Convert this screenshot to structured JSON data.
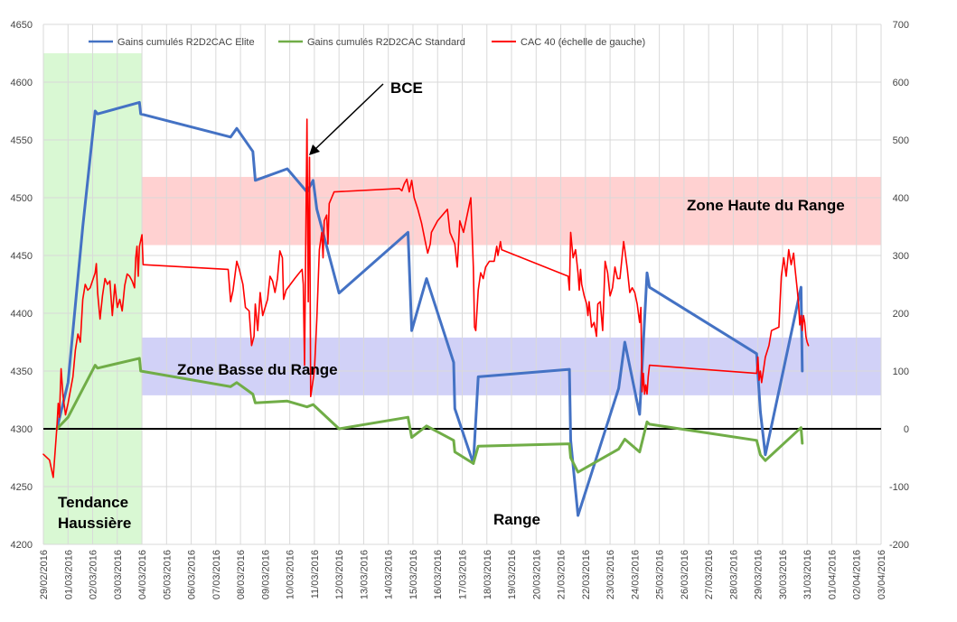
{
  "chart_data": {
    "type": "line",
    "x_range": [
      "29/02/2016",
      "03/04/2016"
    ],
    "x_tick_labels": [
      "29/02/2016",
      "01/03/2016",
      "02/03/2016",
      "03/03/2016",
      "04/03/2016",
      "05/03/2016",
      "06/03/2016",
      "07/03/2016",
      "08/03/2016",
      "09/03/2016",
      "10/03/2016",
      "11/03/2016",
      "12/03/2016",
      "13/03/2016",
      "14/03/2016",
      "15/03/2016",
      "16/03/2016",
      "17/03/2016",
      "18/03/2016",
      "19/03/2016",
      "20/03/2016",
      "21/03/2016",
      "22/03/2016",
      "23/03/2016",
      "24/03/2016",
      "25/03/2016",
      "26/03/2016",
      "27/03/2016",
      "28/03/2016",
      "29/03/2016",
      "30/03/2016",
      "31/03/2016",
      "01/04/2016",
      "02/04/2016",
      "03/04/2016"
    ],
    "y_left": {
      "min": 4200,
      "max": 4650,
      "ticks": [
        "4200",
        "4250",
        "4300",
        "4350",
        "4400",
        "4450",
        "4500",
        "4550",
        "4600",
        "4650"
      ]
    },
    "y_right": {
      "min": -200,
      "max": 700,
      "ticks": [
        "-200",
        "-100",
        "0",
        "100",
        "200",
        "300",
        "400",
        "500",
        "600",
        "700"
      ]
    },
    "grid": true,
    "legend_position": "top",
    "series": [
      {
        "name": "Gains cumulés R2D2CAC Elite",
        "axis": "right",
        "color": "#4472c4",
        "points": [
          [
            0.55,
            0
          ],
          [
            1.0,
            80
          ],
          [
            1.6,
            350
          ],
          [
            2.1,
            550
          ],
          [
            2.2,
            545
          ],
          [
            3.9,
            565
          ],
          [
            3.95,
            545
          ],
          [
            7.6,
            505
          ],
          [
            7.85,
            520
          ],
          [
            8.5,
            480
          ],
          [
            8.6,
            430
          ],
          [
            9.9,
            450
          ],
          [
            10.7,
            410
          ],
          [
            10.95,
            430
          ],
          [
            11.1,
            380
          ],
          [
            12.0,
            235
          ],
          [
            14.8,
            340
          ],
          [
            14.95,
            170
          ],
          [
            15.55,
            260
          ],
          [
            16.65,
            115
          ],
          [
            16.7,
            35
          ],
          [
            17.45,
            -60
          ],
          [
            17.65,
            90
          ],
          [
            21.35,
            103
          ],
          [
            21.4,
            -20
          ],
          [
            21.7,
            -150
          ],
          [
            23.35,
            70
          ],
          [
            23.6,
            150
          ],
          [
            24.2,
            25
          ],
          [
            24.5,
            270
          ],
          [
            24.6,
            245
          ],
          [
            28.95,
            130
          ],
          [
            29.1,
            30
          ],
          [
            29.3,
            -45
          ],
          [
            30.75,
            245
          ],
          [
            30.8,
            100
          ]
        ]
      },
      {
        "name": "Gains cumulés R2D2CAC Standard",
        "axis": "right",
        "color": "#70ad47",
        "points": [
          [
            0.55,
            0
          ],
          [
            1.0,
            20
          ],
          [
            2.1,
            110
          ],
          [
            2.2,
            105
          ],
          [
            3.9,
            122
          ],
          [
            3.95,
            100
          ],
          [
            7.6,
            73
          ],
          [
            7.85,
            80
          ],
          [
            8.5,
            60
          ],
          [
            8.6,
            45
          ],
          [
            9.9,
            48
          ],
          [
            10.7,
            38
          ],
          [
            10.95,
            42
          ],
          [
            12.0,
            0
          ],
          [
            14.8,
            20
          ],
          [
            14.95,
            -15
          ],
          [
            15.55,
            5
          ],
          [
            16.65,
            -20
          ],
          [
            16.7,
            -40
          ],
          [
            17.45,
            -60
          ],
          [
            17.65,
            -30
          ],
          [
            21.35,
            -26
          ],
          [
            21.4,
            -50
          ],
          [
            21.7,
            -75
          ],
          [
            23.35,
            -35
          ],
          [
            23.6,
            -18
          ],
          [
            24.2,
            -40
          ],
          [
            24.5,
            12
          ],
          [
            24.6,
            8
          ],
          [
            28.95,
            -20
          ],
          [
            29.1,
            -45
          ],
          [
            29.3,
            -55
          ],
          [
            30.75,
            2
          ],
          [
            30.8,
            -25
          ]
        ]
      },
      {
        "name": "CAC 40 (échelle de gauche)",
        "axis": "left",
        "color": "#ff0000",
        "points": [
          [
            0.0,
            4278
          ],
          [
            0.25,
            4273
          ],
          [
            0.4,
            4258
          ],
          [
            0.55,
            4302
          ],
          [
            0.6,
            4322
          ],
          [
            0.65,
            4310
          ],
          [
            0.72,
            4352
          ],
          [
            0.8,
            4328
          ],
          [
            0.9,
            4312
          ],
          [
            1.0,
            4322
          ],
          [
            1.2,
            4345
          ],
          [
            1.3,
            4368
          ],
          [
            1.4,
            4382
          ],
          [
            1.5,
            4375
          ],
          [
            1.6,
            4412
          ],
          [
            1.7,
            4425
          ],
          [
            1.8,
            4420
          ],
          [
            1.9,
            4422
          ],
          [
            2.1,
            4435
          ],
          [
            2.15,
            4443
          ],
          [
            2.2,
            4418
          ],
          [
            2.3,
            4395
          ],
          [
            2.4,
            4415
          ],
          [
            2.5,
            4430
          ],
          [
            2.6,
            4425
          ],
          [
            2.7,
            4428
          ],
          [
            2.8,
            4398
          ],
          [
            2.9,
            4425
          ],
          [
            3.0,
            4405
          ],
          [
            3.1,
            4412
          ],
          [
            3.2,
            4402
          ],
          [
            3.3,
            4424
          ],
          [
            3.4,
            4434
          ],
          [
            3.5,
            4432
          ],
          [
            3.6,
            4428
          ],
          [
            3.7,
            4422
          ],
          [
            3.75,
            4448
          ],
          [
            3.8,
            4458
          ],
          [
            3.85,
            4432
          ],
          [
            3.9,
            4458
          ],
          [
            4.0,
            4468
          ],
          [
            4.05,
            4442
          ],
          [
            7.5,
            4438
          ],
          [
            7.6,
            4410
          ],
          [
            7.7,
            4420
          ],
          [
            7.85,
            4445
          ],
          [
            7.95,
            4438
          ],
          [
            8.1,
            4425
          ],
          [
            8.2,
            4405
          ],
          [
            8.35,
            4402
          ],
          [
            8.45,
            4372
          ],
          [
            8.55,
            4380
          ],
          [
            8.6,
            4408
          ],
          [
            8.7,
            4385
          ],
          [
            8.8,
            4418
          ],
          [
            8.9,
            4398
          ],
          [
            9.1,
            4412
          ],
          [
            9.2,
            4432
          ],
          [
            9.3,
            4428
          ],
          [
            9.4,
            4418
          ],
          [
            9.5,
            4430
          ],
          [
            9.6,
            4454
          ],
          [
            9.7,
            4448
          ],
          [
            9.75,
            4412
          ],
          [
            9.85,
            4420
          ],
          [
            10.2,
            4430
          ],
          [
            10.5,
            4438
          ],
          [
            10.55,
            4425
          ],
          [
            10.6,
            4355
          ],
          [
            10.7,
            4568
          ],
          [
            10.75,
            4410
          ],
          [
            10.8,
            4535
          ],
          [
            10.85,
            4328
          ],
          [
            11.0,
            4350
          ],
          [
            11.1,
            4395
          ],
          [
            11.2,
            4455
          ],
          [
            11.3,
            4470
          ],
          [
            11.35,
            4448
          ],
          [
            11.4,
            4480
          ],
          [
            11.5,
            4485
          ],
          [
            11.55,
            4460
          ],
          [
            11.6,
            4495
          ],
          [
            11.7,
            4500
          ],
          [
            11.8,
            4505
          ],
          [
            14.45,
            4508
          ],
          [
            14.55,
            4506
          ],
          [
            14.65,
            4512
          ],
          [
            14.75,
            4516
          ],
          [
            14.85,
            4505
          ],
          [
            14.95,
            4515
          ],
          [
            15.05,
            4500
          ],
          [
            15.2,
            4490
          ],
          [
            15.35,
            4478
          ],
          [
            15.5,
            4462
          ],
          [
            15.6,
            4452
          ],
          [
            15.7,
            4460
          ],
          [
            15.75,
            4470
          ],
          [
            16.0,
            4480
          ],
          [
            16.4,
            4490
          ],
          [
            16.5,
            4470
          ],
          [
            16.6,
            4465
          ],
          [
            16.7,
            4460
          ],
          [
            16.8,
            4440
          ],
          [
            16.9,
            4480
          ],
          [
            17.05,
            4470
          ],
          [
            17.25,
            4490
          ],
          [
            17.35,
            4500
          ],
          [
            17.45,
            4440
          ],
          [
            17.5,
            4388
          ],
          [
            17.55,
            4385
          ],
          [
            17.65,
            4420
          ],
          [
            17.75,
            4435
          ],
          [
            17.85,
            4430
          ],
          [
            17.95,
            4440
          ],
          [
            18.1,
            4445
          ],
          [
            18.3,
            4445
          ],
          [
            18.4,
            4458
          ],
          [
            18.45,
            4450
          ],
          [
            18.55,
            4462
          ],
          [
            18.6,
            4455
          ],
          [
            21.3,
            4432
          ],
          [
            21.35,
            4420
          ],
          [
            21.4,
            4470
          ],
          [
            21.5,
            4448
          ],
          [
            21.6,
            4455
          ],
          [
            21.7,
            4435
          ],
          [
            21.75,
            4420
          ],
          [
            21.8,
            4438
          ],
          [
            21.85,
            4425
          ],
          [
            21.95,
            4415
          ],
          [
            22.05,
            4408
          ],
          [
            22.1,
            4398
          ],
          [
            22.15,
            4410
          ],
          [
            22.25,
            4388
          ],
          [
            22.35,
            4392
          ],
          [
            22.45,
            4380
          ],
          [
            22.5,
            4408
          ],
          [
            22.6,
            4410
          ],
          [
            22.7,
            4385
          ],
          [
            22.8,
            4445
          ],
          [
            22.9,
            4435
          ],
          [
            23.0,
            4415
          ],
          [
            23.1,
            4422
          ],
          [
            23.2,
            4440
          ],
          [
            23.3,
            4430
          ],
          [
            23.4,
            4430
          ],
          [
            23.55,
            4462
          ],
          [
            23.6,
            4455
          ],
          [
            23.7,
            4438
          ],
          [
            23.8,
            4418
          ],
          [
            23.9,
            4422
          ],
          [
            24.0,
            4418
          ],
          [
            24.1,
            4408
          ],
          [
            24.2,
            4392
          ],
          [
            24.25,
            4405
          ],
          [
            24.3,
            4332
          ],
          [
            24.35,
            4348
          ],
          [
            24.4,
            4330
          ],
          [
            24.45,
            4338
          ],
          [
            24.5,
            4330
          ],
          [
            24.55,
            4345
          ],
          [
            24.6,
            4355
          ],
          [
            28.95,
            4348
          ],
          [
            29.0,
            4362
          ],
          [
            29.05,
            4342
          ],
          [
            29.1,
            4350
          ],
          [
            29.15,
            4340
          ],
          [
            29.3,
            4362
          ],
          [
            29.45,
            4372
          ],
          [
            29.55,
            4385
          ],
          [
            29.85,
            4388
          ],
          [
            29.95,
            4432
          ],
          [
            30.05,
            4448
          ],
          [
            30.15,
            4432
          ],
          [
            30.25,
            4455
          ],
          [
            30.35,
            4442
          ],
          [
            30.45,
            4452
          ],
          [
            30.5,
            4440
          ],
          [
            30.6,
            4420
          ],
          [
            30.65,
            4408
          ],
          [
            30.7,
            4390
          ],
          [
            30.75,
            4398
          ],
          [
            30.8,
            4385
          ],
          [
            30.85,
            4398
          ],
          [
            30.9,
            4392
          ],
          [
            30.95,
            4380
          ],
          [
            31.0,
            4375
          ],
          [
            31.05,
            4372
          ]
        ]
      }
    ],
    "zones": [
      {
        "label": "Zone Haute du Range",
        "axis": "left",
        "y_from": 4459,
        "y_to": 4518,
        "x_from": 4.0,
        "x_to": 34.0,
        "color": "#ff9999"
      },
      {
        "label": "Zone Basse du Range",
        "axis": "left",
        "y_from": 4329,
        "y_to": 4379,
        "x_from": 4.0,
        "x_to": 34.0,
        "color": "#9999ee"
      },
      {
        "label": "Tendance Haussière",
        "axis": "left",
        "y_from": 4200,
        "y_to": 4625,
        "x_from": 0.0,
        "x_to": 4.0,
        "color": "#ccf5c4"
      }
    ],
    "annotations": [
      {
        "id": "bce",
        "text": "BCE"
      },
      {
        "id": "range",
        "text": "Range"
      },
      {
        "id": "zone-haute",
        "text": "Zone Haute du Range"
      },
      {
        "id": "zone-basse",
        "text": "Zone Basse du Range"
      },
      {
        "id": "tendance-1",
        "text": "Tendance"
      },
      {
        "id": "tendance-2",
        "text": "Haussière"
      }
    ]
  }
}
